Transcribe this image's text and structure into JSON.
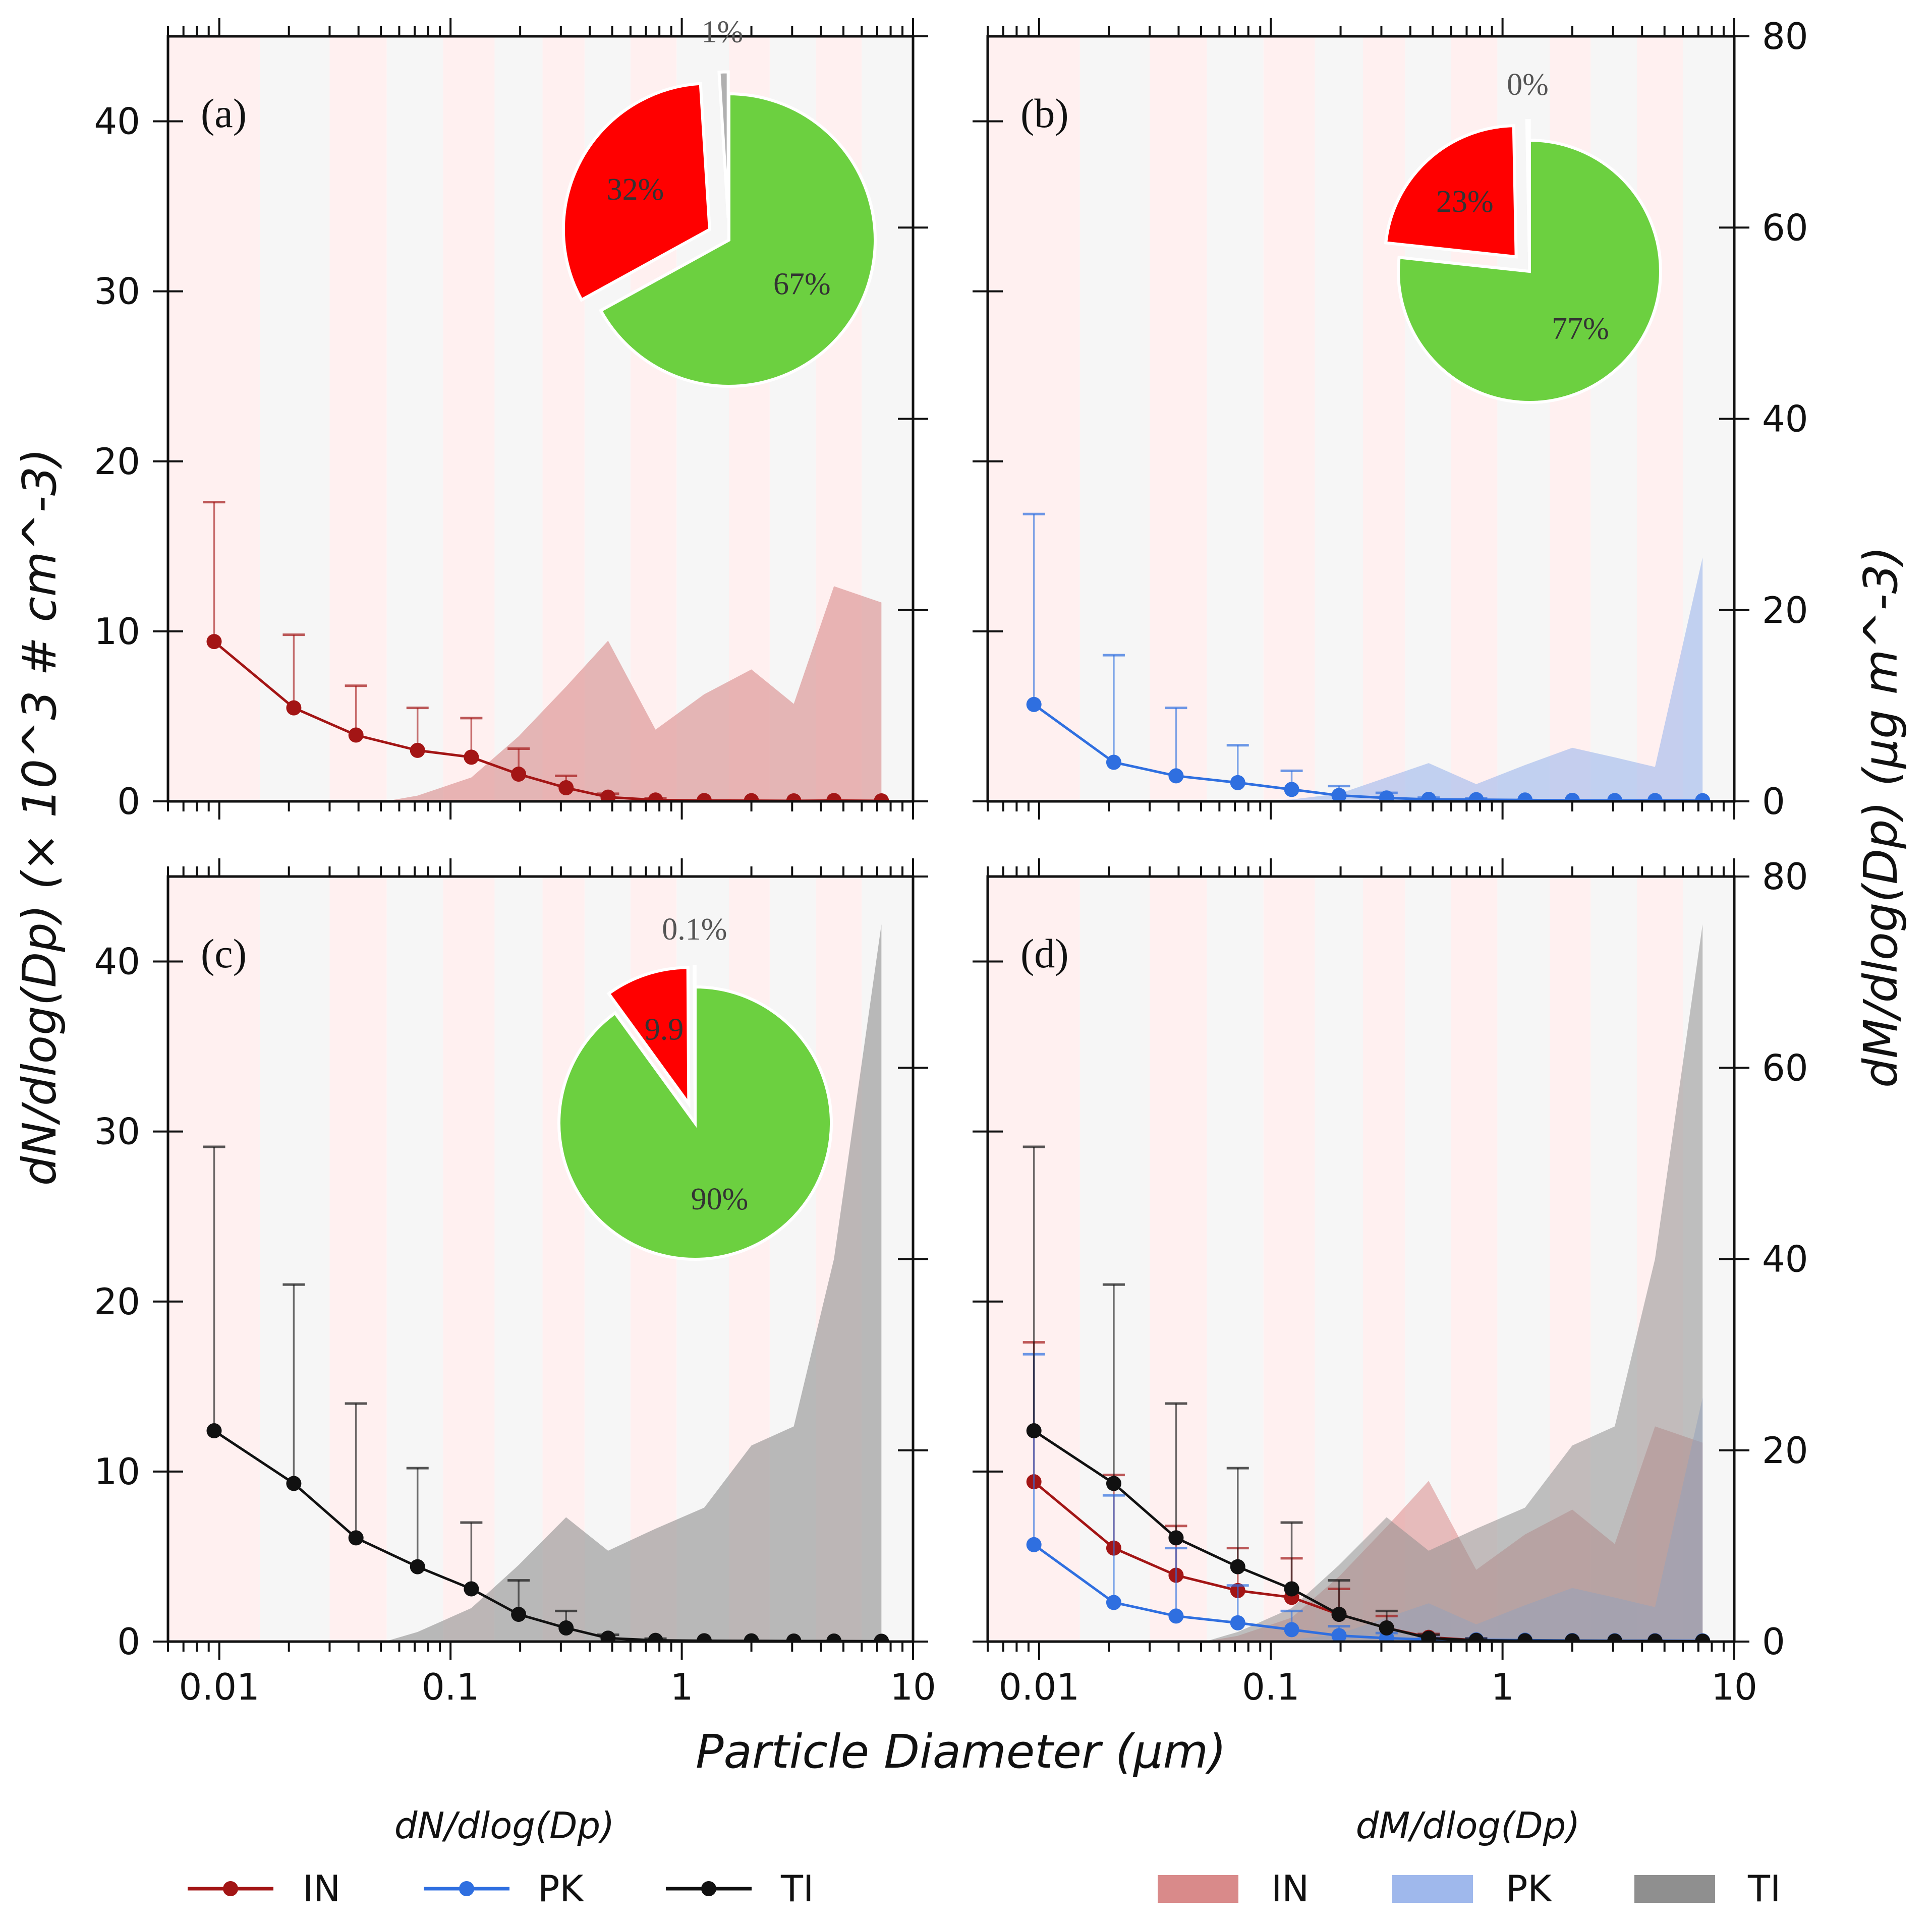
{
  "figure": {
    "x_axis_label": "Particle Diameter (μm)",
    "y_left_label": "dN/dlog(Dp) (× 10^3 # cm^-3)",
    "y_right_label": "dM/dlog(Dp) (μg m^-3)",
    "x_ticks": [
      "0.01",
      "0.1",
      "1",
      "10"
    ],
    "y_left_ticks": [
      "0",
      "10",
      "20",
      "30",
      "40"
    ],
    "y_right_ticks": [
      "0",
      "20",
      "40",
      "60",
      "80"
    ],
    "legend_number_title": "dN/dlog(Dp)",
    "legend_mass_title": "dM/dlog(Dp)",
    "legend_items": [
      "IN",
      "PK",
      "TI"
    ]
  },
  "colors": {
    "IN_line": "#a31515",
    "PK_line": "#2f6fe0",
    "TI_line": "#111111",
    "IN_fill": "#d98a8a",
    "PK_fill": "#9fb8ec",
    "TI_fill": "#8f8f8f",
    "pie_red": "#ff0000",
    "pie_green": "#6cd040",
    "stripe_pink": "#fff0f0",
    "stripe_grey": "#f6f6f6"
  },
  "chart_data": [
    {
      "panel": "(a)",
      "type": "line+area+pie",
      "xscale": "log",
      "xlim": [
        0.006,
        10
      ],
      "ylim_left": [
        0,
        45
      ],
      "ylim_right": [
        0,
        80
      ],
      "number_series": [
        {
          "name": "IN",
          "x": [
            0.0095,
            0.021,
            0.039,
            0.072,
            0.123,
            0.197,
            0.316,
            0.48,
            0.77,
            1.25,
            2.0,
            3.05,
            4.55,
            7.3
          ],
          "y": [
            9.4,
            5.5,
            3.9,
            3.0,
            2.6,
            1.6,
            0.8,
            0.25,
            0.08,
            0.05,
            0.04,
            0.03,
            0.05,
            0.03
          ],
          "err": [
            8.2,
            4.3,
            2.9,
            2.5,
            2.3,
            1.5,
            0.7,
            0.2,
            0.1,
            0.05,
            0.04,
            0.03,
            0.05,
            0.03
          ]
        }
      ],
      "mass_series": [
        {
          "name": "IN",
          "x": [
            0.0095,
            0.021,
            0.039,
            0.052,
            0.072,
            0.123,
            0.197,
            0.316,
            0.48,
            0.77,
            1.25,
            2.0,
            3.05,
            4.55,
            7.3
          ],
          "y": [
            0,
            0,
            0,
            0,
            0.6,
            2.5,
            6.8,
            12.0,
            16.8,
            7.5,
            11.2,
            13.8,
            10.2,
            22.5,
            20.8
          ]
        }
      ],
      "pie": {
        "labels": [
          "1%",
          "32%",
          "67%"
        ],
        "values": [
          1,
          32,
          67
        ],
        "colors": [
          "#b0b0b0",
          "#ff0000",
          "#6cd040"
        ]
      }
    },
    {
      "panel": "(b)",
      "type": "line+area+pie",
      "xscale": "log",
      "xlim": [
        0.006,
        10
      ],
      "ylim_left": [
        0,
        45
      ],
      "ylim_right": [
        0,
        80
      ],
      "number_series": [
        {
          "name": "PK",
          "x": [
            0.0095,
            0.021,
            0.039,
            0.072,
            0.123,
            0.197,
            0.316,
            0.48,
            0.77,
            1.25,
            2.0,
            3.05,
            4.55,
            7.3
          ],
          "y": [
            5.7,
            2.3,
            1.5,
            1.1,
            0.7,
            0.35,
            0.2,
            0.12,
            0.1,
            0.08,
            0.06,
            0.05,
            0.05,
            0.04
          ],
          "err": [
            11.2,
            6.3,
            4.0,
            2.2,
            1.1,
            0.55,
            0.3,
            0.1,
            0.08,
            0.06,
            0.05,
            0.05,
            0.05,
            0.04
          ]
        }
      ],
      "mass_series": [
        {
          "name": "PK",
          "x": [
            0.0095,
            0.021,
            0.039,
            0.072,
            0.123,
            0.197,
            0.316,
            0.48,
            0.77,
            1.25,
            2.0,
            3.05,
            4.55,
            7.3
          ],
          "y": [
            0,
            0,
            0,
            0,
            0.2,
            0.8,
            2.5,
            4.0,
            1.8,
            3.8,
            5.6,
            4.6,
            3.6,
            25.5
          ]
        }
      ],
      "pie": {
        "labels": [
          "0%",
          "23%",
          "77%"
        ],
        "values": [
          0.3,
          23,
          76.7
        ],
        "colors": [
          "#b0b0b0",
          "#ff0000",
          "#6cd040"
        ]
      }
    },
    {
      "panel": "(c)",
      "type": "line+area+pie",
      "xscale": "log",
      "xlim": [
        0.006,
        10
      ],
      "ylim_left": [
        0,
        45
      ],
      "ylim_right": [
        0,
        80
      ],
      "number_series": [
        {
          "name": "TI",
          "x": [
            0.0095,
            0.021,
            0.039,
            0.072,
            0.123,
            0.197,
            0.316,
            0.48,
            0.77,
            1.25,
            2.0,
            3.05,
            4.55,
            7.3
          ],
          "y": [
            12.4,
            9.3,
            6.1,
            4.4,
            3.1,
            1.6,
            0.8,
            0.2,
            0.07,
            0.05,
            0.04,
            0.03,
            0.03,
            0.02
          ],
          "err": [
            16.7,
            11.7,
            7.9,
            5.8,
            3.9,
            2.0,
            1.0,
            0.2,
            0.1,
            0.05,
            0.04,
            0.03,
            0.03,
            0.02
          ]
        }
      ],
      "mass_series": [
        {
          "name": "TI",
          "x": [
            0.0095,
            0.021,
            0.039,
            0.052,
            0.072,
            0.123,
            0.197,
            0.316,
            0.48,
            0.77,
            1.25,
            2.0,
            3.05,
            4.55,
            7.3
          ],
          "y": [
            0,
            0,
            0,
            0,
            1.0,
            3.5,
            8.0,
            13.0,
            9.5,
            11.8,
            14.0,
            20.5,
            22.5,
            40.0,
            75.0
          ]
        }
      ],
      "pie": {
        "labels": [
          "0.1%",
          "9.9",
          "90%"
        ],
        "values": [
          0.1,
          9.9,
          90
        ],
        "colors": [
          "#b0b0b0",
          "#ff0000",
          "#6cd040"
        ]
      }
    },
    {
      "panel": "(d)",
      "type": "line+area",
      "xscale": "log",
      "xlim": [
        0.006,
        10
      ],
      "ylim_left": [
        0,
        45
      ],
      "ylim_right": [
        0,
        80
      ],
      "number_series": [
        {
          "name": "IN",
          "x": [
            0.0095,
            0.021,
            0.039,
            0.072,
            0.123,
            0.197,
            0.316,
            0.48,
            0.77,
            1.25,
            2.0,
            3.05,
            4.55,
            7.3
          ],
          "y": [
            9.4,
            5.5,
            3.9,
            3.0,
            2.6,
            1.6,
            0.8,
            0.25,
            0.08,
            0.05,
            0.04,
            0.03,
            0.05,
            0.03
          ],
          "err": [
            8.2,
            4.3,
            2.9,
            2.5,
            2.3,
            1.5,
            0.7,
            0.2,
            0.1,
            0.05,
            0.04,
            0.03,
            0.05,
            0.03
          ]
        },
        {
          "name": "PK",
          "x": [
            0.0095,
            0.021,
            0.039,
            0.072,
            0.123,
            0.197,
            0.316,
            0.48,
            0.77,
            1.25,
            2.0,
            3.05,
            4.55,
            7.3
          ],
          "y": [
            5.7,
            2.3,
            1.5,
            1.1,
            0.7,
            0.35,
            0.2,
            0.12,
            0.1,
            0.08,
            0.06,
            0.05,
            0.05,
            0.04
          ],
          "err": [
            11.2,
            6.3,
            4.0,
            2.2,
            1.1,
            0.55,
            0.3,
            0.1,
            0.08,
            0.06,
            0.05,
            0.05,
            0.05,
            0.04
          ]
        },
        {
          "name": "TI",
          "x": [
            0.0095,
            0.021,
            0.039,
            0.072,
            0.123,
            0.197,
            0.316,
            0.48,
            0.77,
            1.25,
            2.0,
            3.05,
            4.55,
            7.3
          ],
          "y": [
            12.4,
            9.3,
            6.1,
            4.4,
            3.1,
            1.6,
            0.8,
            0.2,
            0.07,
            0.05,
            0.04,
            0.03,
            0.03,
            0.02
          ],
          "err": [
            16.7,
            11.7,
            7.9,
            5.8,
            3.9,
            2.0,
            1.0,
            0.2,
            0.1,
            0.05,
            0.04,
            0.03,
            0.03,
            0.02
          ]
        }
      ],
      "mass_series": [
        {
          "name": "IN",
          "x": [
            0.0095,
            0.021,
            0.039,
            0.052,
            0.072,
            0.123,
            0.197,
            0.316,
            0.48,
            0.77,
            1.25,
            2.0,
            3.05,
            4.55,
            7.3
          ],
          "y": [
            0,
            0,
            0,
            0,
            0.6,
            2.5,
            6.8,
            12.0,
            16.8,
            7.5,
            11.2,
            13.8,
            10.2,
            22.5,
            20.8
          ]
        },
        {
          "name": "PK",
          "x": [
            0.0095,
            0.021,
            0.039,
            0.072,
            0.123,
            0.197,
            0.316,
            0.48,
            0.77,
            1.25,
            2.0,
            3.05,
            4.55,
            7.3
          ],
          "y": [
            0,
            0,
            0,
            0,
            0.2,
            0.8,
            2.5,
            4.0,
            1.8,
            3.8,
            5.6,
            4.6,
            3.6,
            25.5
          ]
        },
        {
          "name": "TI",
          "x": [
            0.0095,
            0.021,
            0.039,
            0.052,
            0.072,
            0.123,
            0.197,
            0.316,
            0.48,
            0.77,
            1.25,
            2.0,
            3.05,
            4.55,
            7.3
          ],
          "y": [
            0,
            0,
            0,
            0,
            1.0,
            3.5,
            8.0,
            13.0,
            9.5,
            11.8,
            14.0,
            20.5,
            22.5,
            40.0,
            75.0
          ]
        }
      ]
    }
  ]
}
